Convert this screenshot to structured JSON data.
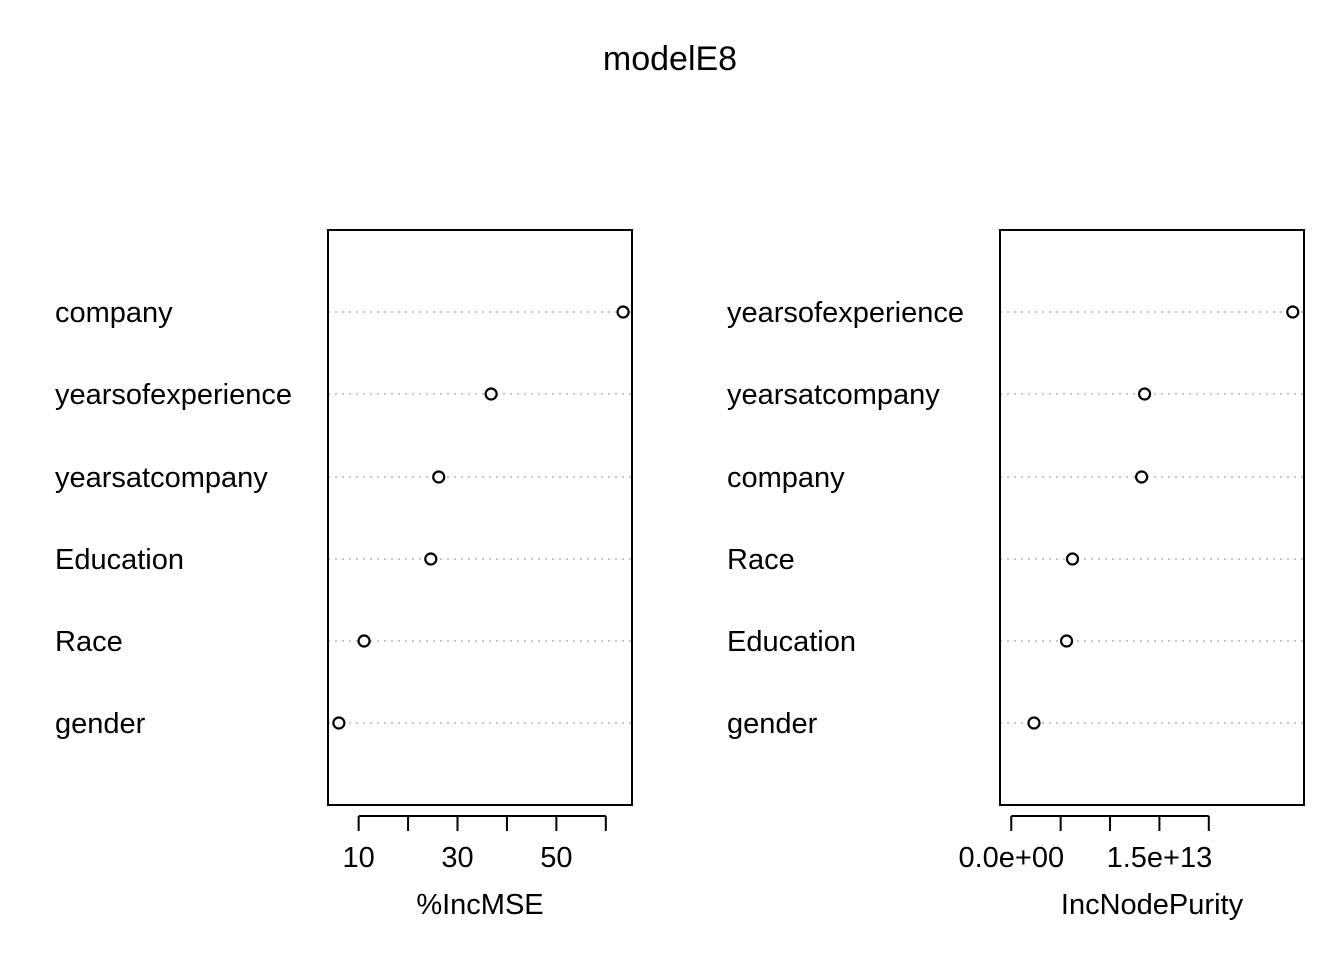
{
  "title": "modelE8",
  "chart_data": [
    {
      "type": "scatter",
      "subtype": "dotchart",
      "xlabel": "%IncMSE",
      "variables": [
        "company",
        "yearsofexperience",
        "yearsatcompany",
        "Education",
        "Race",
        "gender"
      ],
      "values": [
        63.5,
        36.8,
        26.2,
        24.6,
        11.1,
        6.0
      ],
      "xlim": [
        3.8,
        65.3
      ],
      "xticks": [
        10,
        20,
        30,
        40,
        50,
        60
      ],
      "xtick_labels": [
        "10",
        "30",
        "50"
      ],
      "xtick_labeled_values": [
        10,
        30,
        50
      ],
      "grid": "dotted-rows"
    },
    {
      "type": "scatter",
      "subtype": "dotchart",
      "xlabel": "IncNodePurity",
      "variables": [
        "yearsofexperience",
        "yearsatcompany",
        "company",
        "Race",
        "Education",
        "gender"
      ],
      "values": [
        28500000000000.0,
        13500000000000.0,
        13200000000000.0,
        6200000000000.0,
        5600000000000.0,
        2300000000000.0
      ],
      "xlim": [
        -1140000000000.0,
        29640000000000.0
      ],
      "xticks": [
        0,
        5000000000000.0,
        10000000000000.0,
        15000000000000.0,
        20000000000000.0
      ],
      "xtick_labels": [
        "0.0e+00",
        "1.5e+13"
      ],
      "xtick_labeled_values": [
        0,
        15000000000000.0
      ],
      "grid": "dotted-rows"
    }
  ]
}
